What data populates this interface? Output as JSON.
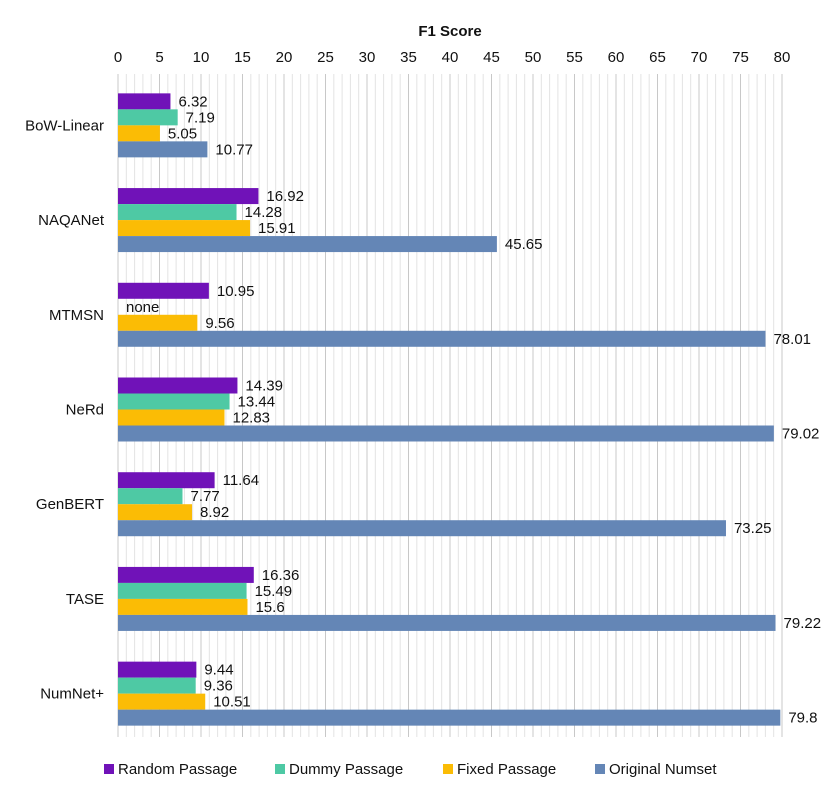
{
  "chart_data": {
    "type": "bar",
    "orientation": "horizontal",
    "title": "F1 Score",
    "xlabel": "F1 Score",
    "ylabel": "",
    "xlim": [
      0,
      80
    ],
    "xticks": [
      0,
      5,
      10,
      15,
      20,
      25,
      30,
      35,
      40,
      45,
      50,
      55,
      60,
      65,
      70,
      75,
      80
    ],
    "minor_gridlines": true,
    "axis_position": "top",
    "legend_position": "bottom",
    "categories": [
      "BoW-Linear",
      "NAQANet",
      "MTMSN",
      "NeRd",
      "GenBERT",
      "TASE",
      "NumNet+"
    ],
    "series": [
      {
        "name": "Random Passage",
        "color": "#7012b8",
        "values": [
          6.32,
          16.92,
          10.95,
          14.39,
          11.64,
          16.36,
          9.44
        ],
        "labels": [
          "6.32",
          "16.92",
          "10.95",
          "14.39",
          "11.64",
          "16.36",
          "9.44"
        ]
      },
      {
        "name": "Dummy Passage",
        "color": "#4ec9a4",
        "values": [
          7.19,
          14.28,
          null,
          13.44,
          7.77,
          15.49,
          9.36
        ],
        "labels": [
          "7.19",
          "14.28",
          "none",
          "13.44",
          "7.77",
          "15.49",
          "9.36"
        ]
      },
      {
        "name": "Fixed Passage",
        "color": "#fbbc05",
        "values": [
          5.05,
          15.91,
          9.56,
          12.83,
          8.92,
          15.6,
          10.51
        ],
        "labels": [
          "5.05",
          "15.91",
          "9.56",
          "12.83",
          "8.92",
          "15.6",
          "10.51"
        ]
      },
      {
        "name": "Original Numset",
        "color": "#6486b6",
        "values": [
          10.77,
          45.65,
          78.01,
          79.02,
          73.25,
          79.22,
          79.8
        ],
        "labels": [
          "10.77",
          "45.65",
          "78.01",
          "79.02",
          "73.25",
          "79.22",
          "79.8"
        ]
      }
    ]
  }
}
